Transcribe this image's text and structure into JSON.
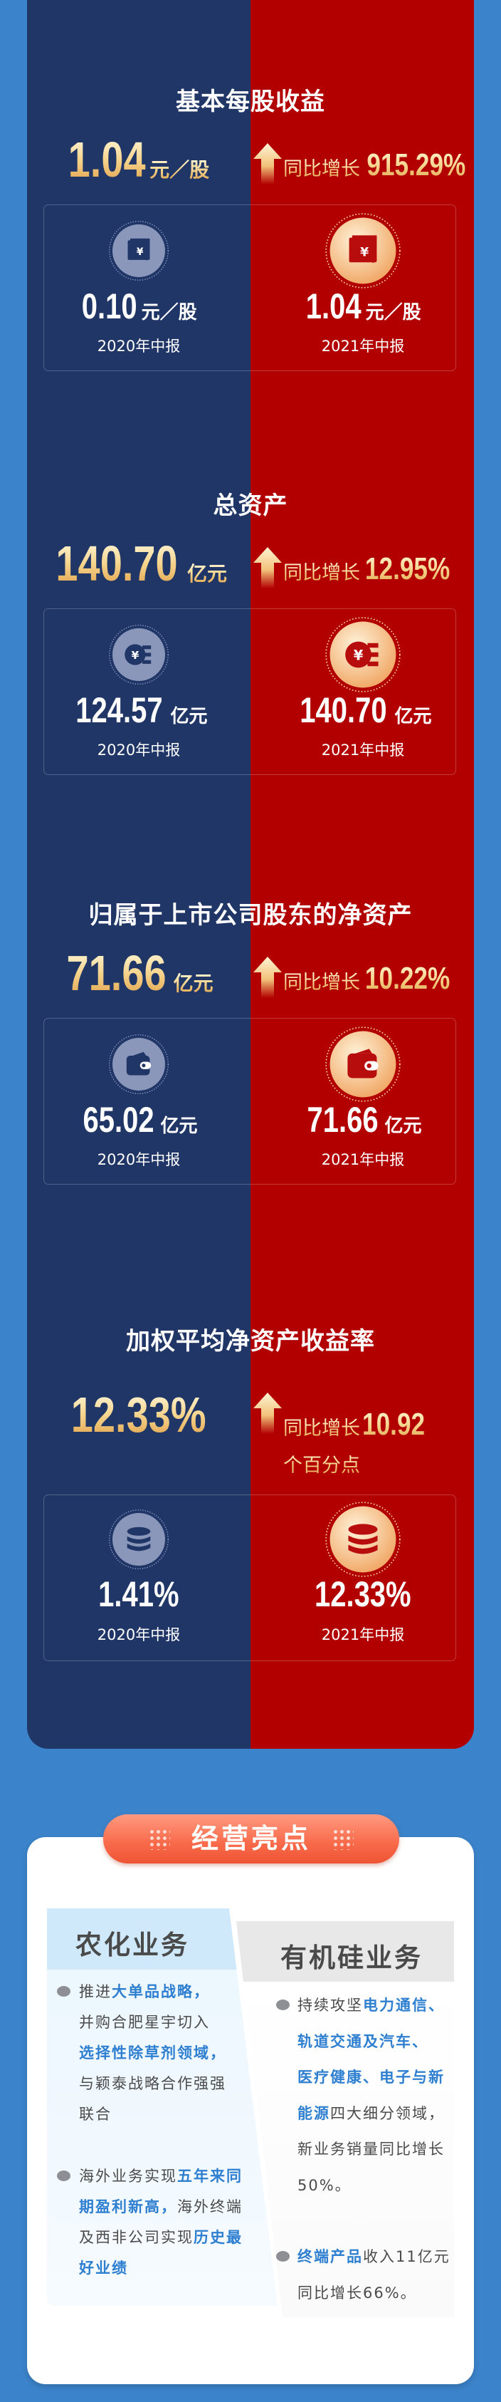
{
  "colors": {
    "navy": "#203667",
    "red": "#b20000",
    "background": "#3b83ca",
    "highlight_text": "#2f7fd0",
    "gold": "#f6d58e"
  },
  "metrics": [
    {
      "title": "基本每股收益",
      "main_value": "1.04",
      "main_unit": "元／股",
      "growth_label": "同比增长",
      "growth_value": "915.29%",
      "icon": "ticket-yen-icon",
      "items": [
        {
          "value": "0.10",
          "unit": "元／股",
          "period": "2020年中报"
        },
        {
          "value": "1.04",
          "unit": "元／股",
          "period": "2021年中报"
        }
      ]
    },
    {
      "title": "总资产",
      "main_value": "140.70",
      "main_unit": "亿元",
      "growth_label": "同比增长",
      "growth_value": "12.95%",
      "icon": "yen-coin-icon",
      "items": [
        {
          "value": "124.57",
          "unit": "亿元",
          "period": "2020年中报"
        },
        {
          "value": "140.70",
          "unit": "亿元",
          "period": "2021年中报"
        }
      ]
    },
    {
      "title": "归属于上市公司股东的净资产",
      "main_value": "71.66",
      "main_unit": "亿元",
      "growth_label": "同比增长",
      "growth_value": "10.22%",
      "icon": "wallet-icon",
      "items": [
        {
          "value": "65.02",
          "unit": "亿元",
          "period": "2020年中报"
        },
        {
          "value": "71.66",
          "unit": "亿元",
          "period": "2021年中报"
        }
      ]
    },
    {
      "title": "加权平均净资产收益率",
      "main_value": "12.33%",
      "main_unit": "",
      "growth_label": "同比增长",
      "growth_value": "10.92",
      "growth_suffix": "个百分点",
      "icon": "coin-stack-icon",
      "items": [
        {
          "value": "1.41%",
          "unit": "",
          "period": "2020年中报"
        },
        {
          "value": "12.33%",
          "unit": "",
          "period": "2021年中报"
        }
      ]
    }
  ],
  "highlights": {
    "title": "经营亮点",
    "agri": {
      "title": "农化业务",
      "items": [
        [
          [
            {
              "t": "推进"
            },
            {
              "t": "大单品战略，",
              "hl": true
            }
          ],
          [
            {
              "t": "并购合肥星宇切入"
            }
          ],
          [
            {
              "t": "选择性除草剂领域，",
              "hl": true
            }
          ],
          [
            {
              "t": "与颖泰战略合作强强"
            }
          ],
          [
            {
              "t": "联合"
            }
          ]
        ],
        [
          [
            {
              "t": "海外业务实现"
            },
            {
              "t": "五年来同",
              "hl": true
            }
          ],
          [
            {
              "t": "期盈利新高，",
              "hl": true
            },
            {
              "t": "海外终端"
            }
          ],
          [
            {
              "t": "及西非公司实现"
            },
            {
              "t": "历史最",
              "hl": true
            }
          ],
          [
            {
              "t": "好业绩",
              "hl": true
            }
          ]
        ]
      ]
    },
    "silicone": {
      "title": "有机硅业务",
      "items": [
        [
          [
            {
              "t": "持续攻坚"
            },
            {
              "t": "电力通信、",
              "hl": true
            }
          ],
          [
            {
              "t": "轨道交通及汽车、",
              "hl": true
            }
          ],
          [
            {
              "t": "医疗健康、电子与新",
              "hl": true
            }
          ],
          [
            {
              "t": "能源",
              "hl": true
            },
            {
              "t": "四大细分领域，"
            }
          ],
          [
            {
              "t": "新业务销量同比增长"
            }
          ],
          [
            {
              "t": "50%。"
            }
          ]
        ],
        [
          [
            {
              "t": "终端产品",
              "hl": true
            },
            {
              "t": "收入11亿元"
            }
          ],
          [
            {
              "t": "同比增长66%。"
            }
          ]
        ]
      ]
    }
  }
}
